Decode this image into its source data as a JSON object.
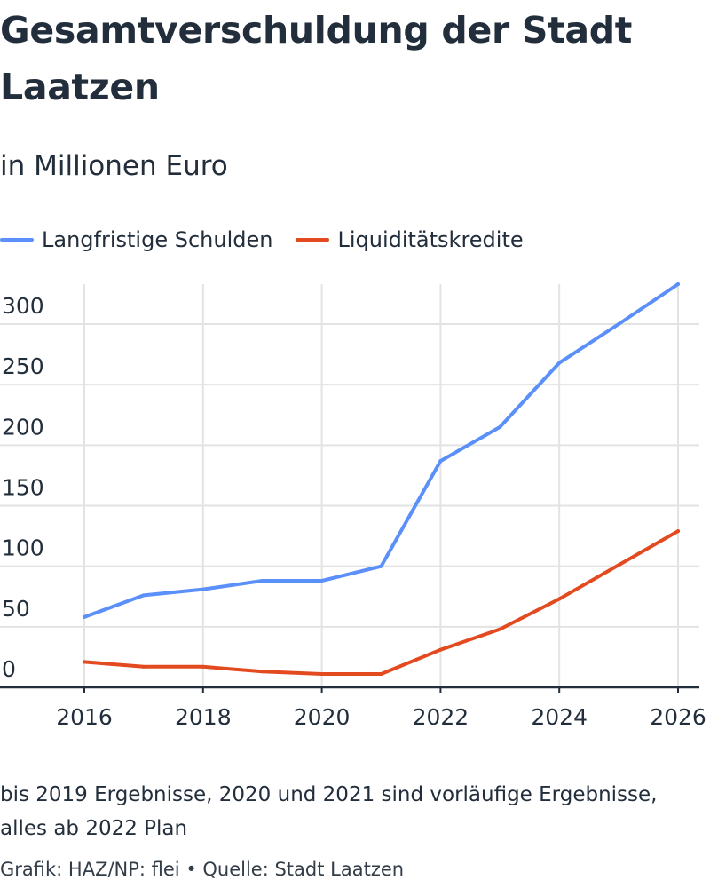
{
  "header": {
    "title": "Gesamtverschuldung der Stadt Laatzen",
    "subtitle": "in Millionen Euro"
  },
  "footer": {
    "note": "bis 2019 Ergebnisse, 2020 und 2021 sind vorläufige Ergebnisse, alles ab 2022 Plan",
    "source": "Grafik: HAZ/NP: flei • Quelle: Stadt Laatzen"
  },
  "colors": {
    "series_1": "#5b8ff9",
    "series_2": "#e34a1f",
    "grid": "#e3e3e3",
    "axis": "#222e3b"
  },
  "chart_data": {
    "type": "line",
    "title": "Gesamtverschuldung der Stadt Laatzen",
    "subtitle": "in Millionen Euro",
    "xlabel": "",
    "ylabel": "",
    "x": [
      2016,
      2017,
      2018,
      2019,
      2020,
      2021,
      2022,
      2023,
      2024,
      2025,
      2026
    ],
    "x_ticks": [
      "2016",
      "2018",
      "2020",
      "2022",
      "2024",
      "2026"
    ],
    "y_ticks": [
      "0",
      "50",
      "100",
      "150",
      "200",
      "250",
      "300"
    ],
    "xlim": [
      2016,
      2026
    ],
    "ylim": [
      0,
      333
    ],
    "grid": true,
    "legend_position": "top-left",
    "series": [
      {
        "name": "Langfristige Schulden",
        "color": "#5b8ff9",
        "values": [
          58,
          76,
          81,
          88,
          88,
          100,
          187,
          215,
          268,
          300,
          333
        ]
      },
      {
        "name": "Liquiditätskredite",
        "color": "#e34a1f",
        "values": [
          21,
          17,
          17,
          13,
          11,
          11,
          31,
          48,
          73,
          101,
          129
        ]
      }
    ]
  }
}
